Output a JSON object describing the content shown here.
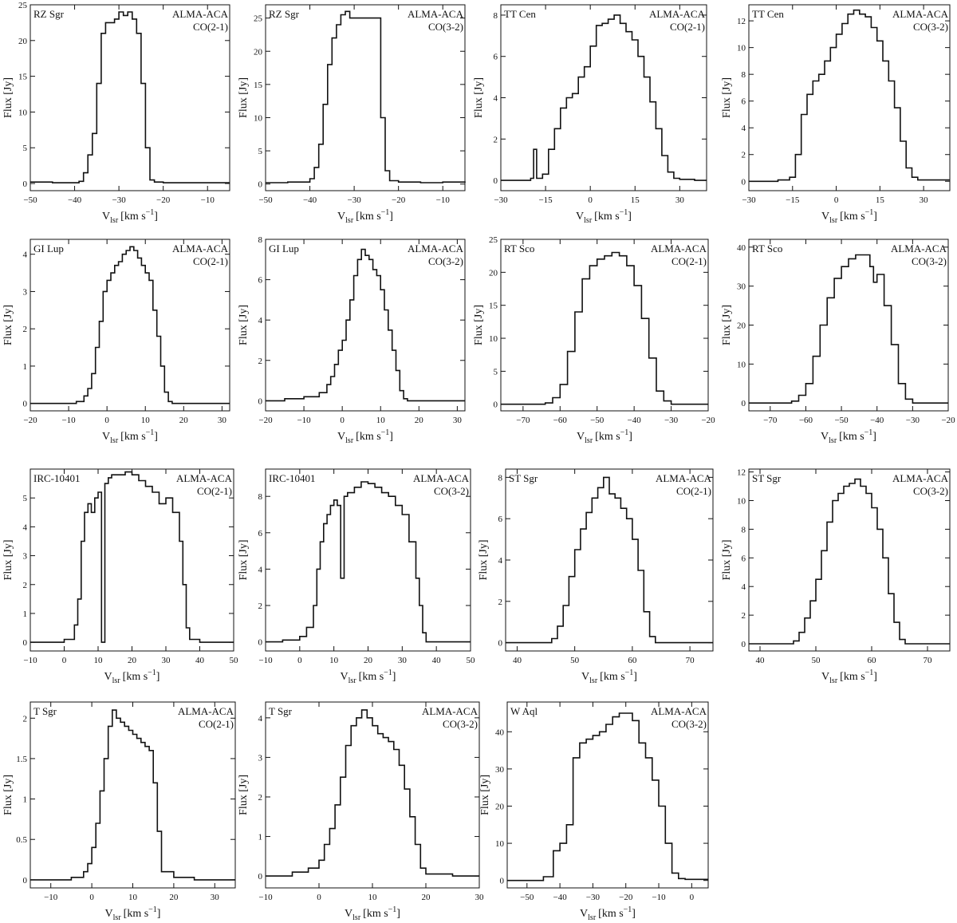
{
  "figure": {
    "colors": {
      "line": "#111111",
      "axis": "#111111",
      "background": "#ffffff"
    },
    "flux_label": "Flux [Jy]",
    "vel_label_main": "V",
    "vel_label_sub": "lsr",
    "vel_label_rest": "[km s",
    "vel_label_sup": "−1",
    "vel_label_close": "]"
  },
  "chart_data": [
    {
      "type": "line",
      "step": true,
      "star": "RZ Sgr",
      "instrument": "ALMA-ACA",
      "line_id": "CO(2-1)",
      "xlim": [
        -50,
        -5
      ],
      "ylim": [
        -1,
        25
      ],
      "xticks": [
        -50,
        -40,
        -30,
        -20,
        -10
      ],
      "yticks": [
        0,
        5,
        10,
        15,
        20,
        25
      ],
      "x": [
        -50,
        -45,
        -41,
        -39,
        -38,
        -37,
        -36,
        -35,
        -34,
        -33,
        -32,
        -31,
        -30,
        -29,
        -28,
        -27,
        -26,
        -25,
        -24,
        -23,
        -22,
        -20,
        -15,
        -10,
        -5
      ],
      "y": [
        0.2,
        0.1,
        0.1,
        0.3,
        1.5,
        4,
        7,
        14,
        21,
        22.5,
        22.5,
        23,
        24,
        23.5,
        24,
        23,
        21,
        14,
        5,
        0.5,
        0.2,
        0.1,
        0.1,
        0.1,
        0.1
      ]
    },
    {
      "type": "line",
      "step": true,
      "star": "RZ Sgr",
      "instrument": "ALMA-ACA",
      "line_id": "CO(3-2)",
      "xlim": [
        -50,
        -5
      ],
      "ylim": [
        -1,
        27
      ],
      "xticks": [
        -50,
        -40,
        -30,
        -20,
        -10
      ],
      "yticks": [
        0,
        5,
        10,
        15,
        20,
        25
      ],
      "x": [
        -50,
        -45,
        -40,
        -39,
        -38,
        -37,
        -36,
        -35,
        -34,
        -33,
        -32,
        -31,
        -30,
        -29,
        -28,
        -27,
        -26,
        -25,
        -24,
        -23,
        -22,
        -20,
        -15,
        -10,
        -5
      ],
      "y": [
        0.2,
        0.3,
        0.8,
        2.5,
        6,
        12,
        18,
        22,
        24,
        25.5,
        26,
        25,
        25,
        25,
        25,
        25,
        25,
        25,
        10,
        2,
        0.5,
        0.3,
        0.2,
        0.3,
        0.2
      ]
    },
    {
      "type": "line",
      "step": true,
      "star": "TT Cen",
      "instrument": "ALMA-ACA",
      "line_id": "CO(2-1)",
      "xlim": [
        -30,
        39
      ],
      "ylim": [
        -0.5,
        8.5
      ],
      "xticks": [
        -30,
        -15,
        0,
        15,
        30
      ],
      "yticks": [
        0,
        2,
        4,
        6,
        8
      ],
      "x": [
        -30,
        -25,
        -20,
        -19,
        -18,
        -16,
        -14,
        -12,
        -10,
        -8,
        -6,
        -4,
        -2,
        0,
        2,
        4,
        6,
        8,
        10,
        12,
        14,
        16,
        18,
        20,
        22,
        24,
        26,
        28,
        30,
        35,
        39
      ],
      "y": [
        0,
        0,
        0.1,
        1.5,
        0.1,
        0.3,
        1.5,
        2.5,
        3.5,
        4,
        4.2,
        5,
        5.5,
        6.5,
        7.5,
        7.6,
        7.8,
        8,
        7.6,
        7.2,
        6.8,
        6,
        5,
        3.8,
        2.5,
        1.2,
        0.4,
        0.1,
        0.05,
        0,
        0
      ]
    },
    {
      "type": "line",
      "step": true,
      "star": "TT Cen",
      "instrument": "ALMA-ACA",
      "line_id": "CO(3-2)",
      "xlim": [
        -30,
        39
      ],
      "ylim": [
        -0.7,
        13.2
      ],
      "xticks": [
        -30,
        -15,
        0,
        15,
        30
      ],
      "yticks": [
        0,
        2,
        4,
        6,
        8,
        10,
        12
      ],
      "x": [
        -30,
        -20,
        -16,
        -14,
        -12,
        -10,
        -8,
        -6,
        -4,
        -2,
        0,
        2,
        4,
        6,
        8,
        10,
        12,
        14,
        16,
        18,
        20,
        22,
        24,
        26,
        28,
        30,
        35,
        39
      ],
      "y": [
        0,
        0.1,
        0.3,
        2,
        5,
        6.5,
        7.5,
        8,
        9,
        10,
        11,
        11.8,
        12.5,
        12.8,
        12.5,
        12.3,
        11.5,
        10.5,
        9,
        7.5,
        5.5,
        3,
        1,
        0.3,
        0.1,
        0.1,
        0.1,
        0.1
      ]
    },
    {
      "type": "line",
      "step": true,
      "star": "GI Lup",
      "instrument": "ALMA-ACA",
      "line_id": "CO(2-1)",
      "xlim": [
        -20,
        32
      ],
      "ylim": [
        -0.2,
        4.4
      ],
      "xticks": [
        -20,
        -10,
        0,
        10,
        20,
        30
      ],
      "yticks": [
        0,
        1,
        2,
        3,
        4
      ],
      "x": [
        -20,
        -15,
        -8,
        -6,
        -5,
        -4,
        -3,
        -2,
        -1,
        0,
        1,
        2,
        3,
        4,
        5,
        6,
        7,
        8,
        9,
        10,
        11,
        12,
        13,
        14,
        15,
        16,
        17,
        20,
        25,
        32
      ],
      "y": [
        0,
        0,
        0.05,
        0.2,
        0.4,
        0.8,
        1.5,
        2.2,
        3,
        3.3,
        3.5,
        3.7,
        3.8,
        4,
        4.1,
        4.2,
        4.1,
        3.9,
        3.7,
        3.5,
        3.3,
        2.5,
        1.8,
        1,
        0.3,
        0.05,
        0,
        0,
        0,
        0
      ]
    },
    {
      "type": "line",
      "step": true,
      "star": "GI Lup",
      "instrument": "ALMA-ACA",
      "line_id": "CO(3-2)",
      "xlim": [
        -20,
        32
      ],
      "ylim": [
        -0.5,
        8
      ],
      "xticks": [
        -20,
        -10,
        0,
        10,
        20,
        30
      ],
      "yticks": [
        0,
        2,
        4,
        6,
        8
      ],
      "x": [
        -20,
        -15,
        -10,
        -6,
        -4,
        -3,
        -2,
        -1,
        0,
        1,
        2,
        3,
        4,
        5,
        6,
        7,
        8,
        9,
        10,
        11,
        12,
        13,
        14,
        15,
        16,
        17,
        20,
        25,
        32
      ],
      "y": [
        0,
        0.1,
        0.2,
        0.4,
        0.8,
        1.2,
        1.8,
        2.5,
        3,
        4,
        5,
        6.2,
        7,
        7.5,
        7.2,
        7,
        6.5,
        6.2,
        5.5,
        4.5,
        3.5,
        2.5,
        1.5,
        0.5,
        0.1,
        0,
        0,
        0,
        0
      ]
    },
    {
      "type": "line",
      "step": true,
      "star": "RT Sco",
      "instrument": "ALMA-ACA",
      "line_id": "CO(2-1)",
      "xlim": [
        -76,
        -20
      ],
      "ylim": [
        -1,
        25
      ],
      "xticks": [
        -70,
        -60,
        -50,
        -40,
        -30,
        -20
      ],
      "yticks": [
        0,
        5,
        10,
        15,
        20,
        25
      ],
      "x": [
        -76,
        -70,
        -64,
        -62,
        -60,
        -58,
        -56,
        -54,
        -52,
        -50,
        -48,
        -46,
        -44,
        -42,
        -40,
        -38,
        -36,
        -34,
        -32,
        -30,
        -25,
        -20
      ],
      "y": [
        0,
        0,
        0.2,
        1,
        3,
        8,
        14,
        19,
        21,
        22,
        22.5,
        23,
        22.5,
        21,
        18,
        13,
        7,
        2,
        0.5,
        0,
        0,
        0
      ]
    },
    {
      "type": "line",
      "step": true,
      "star": "RT Sco",
      "instrument": "ALMA-ACA",
      "line_id": "CO(3-2)",
      "xlim": [
        -76,
        -20
      ],
      "ylim": [
        -2,
        42
      ],
      "xticks": [
        -70,
        -60,
        -50,
        -40,
        -30,
        -20
      ],
      "yticks": [
        0,
        10,
        20,
        30,
        40
      ],
      "x": [
        -76,
        -70,
        -64,
        -62,
        -60,
        -58,
        -56,
        -54,
        -52,
        -50,
        -48,
        -46,
        -44,
        -42,
        -41,
        -40,
        -38,
        -36,
        -34,
        -32,
        -30,
        -25,
        -20
      ],
      "y": [
        0,
        0,
        0.5,
        2,
        5,
        12,
        20,
        27,
        32,
        35,
        37,
        38,
        38,
        35,
        31,
        33,
        25,
        15,
        5,
        1,
        0,
        0,
        0
      ]
    },
    {
      "type": "line",
      "step": true,
      "star": "IRC-10401",
      "instrument": "ALMA-ACA",
      "line_id": "CO(2-1)",
      "xlim": [
        -10,
        50
      ],
      "ylim": [
        -0.3,
        6
      ],
      "xticks": [
        -10,
        0,
        10,
        20,
        30,
        40,
        50
      ],
      "yticks": [
        0,
        1,
        2,
        3,
        4,
        5
      ],
      "x": [
        -10,
        -5,
        0,
        3,
        4,
        5,
        6,
        7,
        8,
        9,
        10,
        11,
        12,
        13,
        14,
        16,
        18,
        20,
        22,
        24,
        26,
        28,
        30,
        32,
        34,
        35,
        36,
        37,
        40,
        45,
        50
      ],
      "y": [
        0,
        0,
        0.1,
        0.6,
        1.5,
        3.5,
        4.5,
        4.8,
        4.5,
        5,
        5.2,
        0,
        5.5,
        5.7,
        5.8,
        5.8,
        5.9,
        5.8,
        5.6,
        5.4,
        5.2,
        4.8,
        5,
        4.5,
        3.5,
        2,
        0.5,
        0.1,
        0,
        0,
        0
      ]
    },
    {
      "type": "line",
      "step": true,
      "star": "IRC-10401",
      "instrument": "ALMA-ACA",
      "line_id": "CO(3-2)",
      "xlim": [
        -10,
        50
      ],
      "ylim": [
        -0.5,
        9.5
      ],
      "xticks": [
        -10,
        0,
        10,
        20,
        30,
        40,
        50
      ],
      "yticks": [
        0,
        2,
        4,
        6,
        8
      ],
      "x": [
        -10,
        -5,
        0,
        2,
        4,
        5,
        6,
        7,
        8,
        9,
        10,
        11,
        12,
        13,
        14,
        16,
        18,
        20,
        22,
        24,
        26,
        28,
        30,
        32,
        34,
        35,
        36,
        37,
        40,
        45,
        50
      ],
      "y": [
        0,
        0.1,
        0.3,
        0.8,
        2,
        4,
        5.5,
        6.5,
        7,
        7.5,
        7.8,
        7.5,
        3.5,
        8,
        8.2,
        8.5,
        8.8,
        8.7,
        8.5,
        8.2,
        8,
        7.5,
        7,
        5.5,
        3.5,
        2,
        0.5,
        0,
        0,
        0,
        0
      ]
    },
    {
      "type": "line",
      "step": true,
      "star": "ST Sgr",
      "instrument": "ALMA-ACA",
      "line_id": "CO(2-1)",
      "xlim": [
        38,
        74
      ],
      "ylim": [
        -0.4,
        8.4
      ],
      "xticks": [
        40,
        50,
        60,
        70
      ],
      "yticks": [
        0,
        2,
        4,
        6,
        8
      ],
      "x": [
        38,
        42,
        46,
        47,
        48,
        49,
        50,
        51,
        52,
        53,
        54,
        55,
        56,
        57,
        58,
        59,
        60,
        61,
        62,
        63,
        64,
        66,
        70,
        74
      ],
      "y": [
        0,
        0,
        0.2,
        0.8,
        1.8,
        3.2,
        4.5,
        5.5,
        6.3,
        7,
        7.5,
        8,
        7.2,
        7,
        6.5,
        6,
        5,
        3.5,
        1.5,
        0.3,
        0,
        0,
        0,
        0
      ]
    },
    {
      "type": "line",
      "step": true,
      "star": "ST Sgr",
      "instrument": "ALMA-ACA",
      "line_id": "CO(3-2)",
      "xlim": [
        38,
        74
      ],
      "ylim": [
        -0.5,
        12.2
      ],
      "xticks": [
        40,
        50,
        60,
        70
      ],
      "yticks": [
        0,
        2,
        4,
        6,
        8,
        10,
        12
      ],
      "x": [
        38,
        42,
        46,
        47,
        48,
        49,
        50,
        51,
        52,
        53,
        54,
        55,
        56,
        57,
        58,
        59,
        60,
        61,
        62,
        63,
        64,
        65,
        66,
        70,
        74
      ],
      "y": [
        0,
        0,
        0.2,
        0.8,
        1.8,
        3,
        4.5,
        6.5,
        8.5,
        10,
        10.5,
        11,
        11.2,
        11.5,
        11,
        10.5,
        9.5,
        8,
        6,
        3.5,
        1.5,
        0.3,
        0,
        0,
        0
      ]
    },
    {
      "type": "line",
      "step": true,
      "star": "T Sgr",
      "instrument": "ALMA-ACA",
      "line_id": "CO(2-1)",
      "xlim": [
        -15,
        35
      ],
      "ylim": [
        -0.1,
        2.2
      ],
      "xticks": [
        -10,
        0,
        10,
        20,
        30
      ],
      "yticks": [
        0,
        0.5,
        1,
        1.5,
        2
      ],
      "x": [
        -15,
        -10,
        -5,
        -2,
        -1,
        0,
        1,
        2,
        3,
        4,
        5,
        6,
        7,
        8,
        9,
        10,
        11,
        12,
        13,
        14,
        15,
        16,
        17,
        20,
        25,
        35
      ],
      "y": [
        0,
        0,
        0.03,
        0.1,
        0.2,
        0.4,
        0.7,
        1.1,
        1.5,
        1.9,
        2.1,
        2,
        1.95,
        1.9,
        1.85,
        1.8,
        1.75,
        1.7,
        1.65,
        1.6,
        1.2,
        0.6,
        0.1,
        0.03,
        0,
        0
      ]
    },
    {
      "type": "line",
      "step": true,
      "star": "T Sgr",
      "instrument": "ALMA-ACA",
      "line_id": "CO(3-2)",
      "xlim": [
        -10,
        30
      ],
      "ylim": [
        -0.3,
        4.4
      ],
      "xticks": [
        -10,
        0,
        10,
        20,
        30
      ],
      "yticks": [
        0,
        1,
        2,
        3,
        4
      ],
      "x": [
        -10,
        -5,
        -2,
        0,
        1,
        2,
        3,
        4,
        5,
        6,
        7,
        8,
        9,
        10,
        11,
        12,
        13,
        14,
        15,
        16,
        17,
        18,
        19,
        20,
        25,
        30
      ],
      "y": [
        0,
        0.1,
        0.2,
        0.4,
        0.8,
        1.2,
        1.8,
        2.5,
        3.3,
        3.8,
        4,
        4.2,
        4,
        3.8,
        3.6,
        3.5,
        3.4,
        3.2,
        2.8,
        2.2,
        1.5,
        0.8,
        0.2,
        0.05,
        0,
        0
      ]
    },
    {
      "type": "line",
      "step": true,
      "star": "W Aql",
      "instrument": "ALMA-ACA",
      "line_id": "CO(3-2)",
      "xlim": [
        -56,
        5
      ],
      "ylim": [
        -2,
        48
      ],
      "xticks": [
        -50,
        -40,
        -30,
        -20,
        -10,
        0
      ],
      "yticks": [
        0,
        10,
        20,
        30,
        40
      ],
      "x": [
        -56,
        -50,
        -45,
        -42,
        -40,
        -38,
        -36,
        -34,
        -32,
        -30,
        -28,
        -26,
        -24,
        -22,
        -20,
        -18,
        -16,
        -14,
        -12,
        -10,
        -8,
        -6,
        -4,
        -2,
        2
      ],
      "y": [
        0,
        0,
        1,
        8,
        10,
        15,
        33,
        37,
        38,
        39,
        40,
        42,
        44,
        45,
        45,
        43,
        37,
        33,
        27,
        20,
        10,
        2,
        0.5,
        0.3,
        0.3
      ]
    }
  ]
}
